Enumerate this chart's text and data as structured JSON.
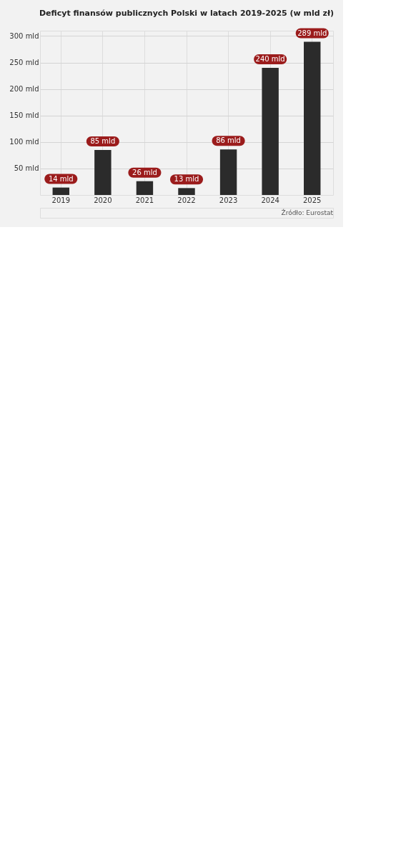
{
  "chart_data": {
    "type": "bar",
    "title": "Deficyt finansów publicznych Polski w latach 2019-2025 (w mld zł)",
    "categories": [
      "2019",
      "2020",
      "2021",
      "2022",
      "2023",
      "2024",
      "2025"
    ],
    "values": [
      14,
      85,
      26,
      13,
      86,
      240,
      289
    ],
    "value_labels": [
      "14 mld",
      "85 mld",
      "26 mld",
      "13 mld",
      "86 mld",
      "240 mld",
      "289 mld"
    ],
    "color": "#2b2b2b",
    "ylim": [
      0,
      310
    ],
    "yticks": [
      {
        "value": 50,
        "label": "50 mld"
      },
      {
        "value": 100,
        "label": "100 mld"
      },
      {
        "value": 150,
        "label": "150 mld"
      },
      {
        "value": 200,
        "label": "200 mld"
      },
      {
        "value": 250,
        "label": "250 mld"
      },
      {
        "value": 300,
        "label": "300 mld"
      }
    ],
    "grid": true,
    "annotations": [
      "Źródło: Eurostat"
    ]
  }
}
